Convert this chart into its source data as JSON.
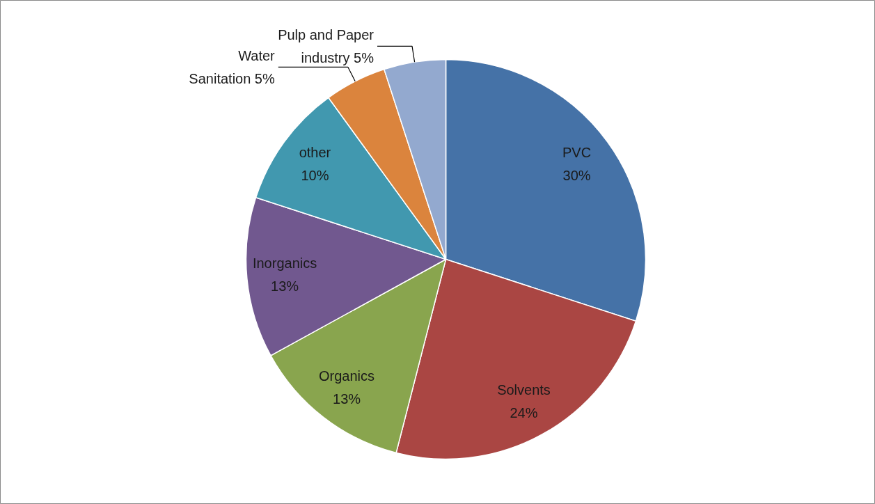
{
  "chart_data": {
    "type": "pie",
    "categories": [
      "PVC",
      "Solvents",
      "Organics",
      "Inorganics",
      "other",
      "Water Sanitation",
      "Pulp and Paper industry"
    ],
    "values": [
      30,
      24,
      13,
      13,
      10,
      5,
      5
    ],
    "value_labels": [
      "30%",
      "24%",
      "13%",
      "13%",
      "10%",
      "5%",
      "5%"
    ],
    "colors": [
      "#4572a7",
      "#aa4643",
      "#89a54e",
      "#71588f",
      "#4198af",
      "#db843d",
      "#93a9cf"
    ]
  }
}
